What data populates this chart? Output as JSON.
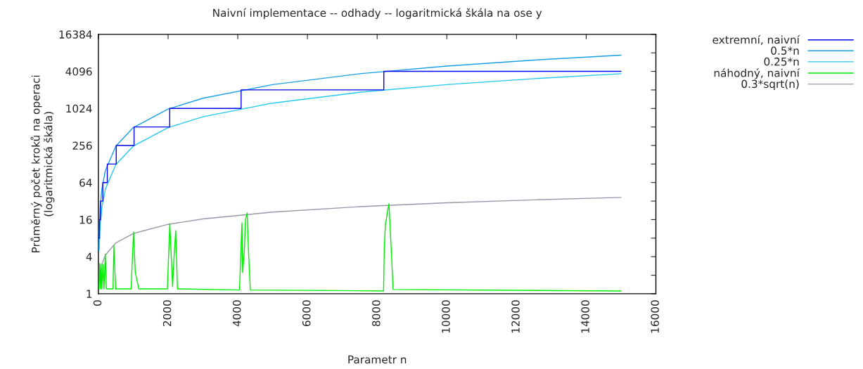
{
  "chart_data": {
    "type": "line",
    "title": "Naivní implementace -- odhady -- logaritmická škála na ose y",
    "xlabel": "Parametr n",
    "ylabel": "Průměrný počet kroků na operaci\n(logaritmická škála)",
    "series": [
      {
        "name": "extremní, naivní",
        "color": "#0000ee",
        "x": [
          16,
          32,
          32,
          64,
          64,
          128,
          128,
          256,
          256,
          512,
          512,
          1024,
          1024,
          2048,
          2048,
          4096,
          4096,
          8192,
          8192,
          15000
        ],
        "values": [
          8,
          8,
          16,
          16,
          32,
          32,
          64,
          64,
          128,
          128,
          256,
          256,
          512,
          512,
          1024,
          1024,
          2048,
          2048,
          4096,
          4096
        ]
      },
      {
        "name": "0.5*n",
        "color": "#1a9fe6",
        "x": [
          10,
          20,
          50,
          100,
          200,
          500,
          1000,
          2000,
          3000,
          5000,
          7500,
          10000,
          12500,
          15000
        ],
        "values": [
          5,
          10,
          25,
          50,
          100,
          250,
          500,
          1000,
          1500,
          2500,
          3750,
          5000,
          6250,
          7500
        ]
      },
      {
        "name": "0.25*n",
        "color": "#22c8ee",
        "x": [
          20,
          50,
          100,
          200,
          500,
          1000,
          2000,
          3000,
          5000,
          7500,
          10000,
          12500,
          15000
        ],
        "values": [
          5,
          12.5,
          25,
          50,
          125,
          250,
          500,
          750,
          1250,
          1875,
          2500,
          3125,
          3750
        ]
      },
      {
        "name": "náhodný, naivní",
        "color": "#00ee00",
        "x": [
          20,
          40,
          60,
          80,
          100,
          130,
          160,
          200,
          230,
          260,
          420,
          445,
          470,
          500,
          940,
          1010,
          1060,
          1160,
          1980,
          2050,
          2130,
          2170,
          2220,
          2270,
          4050,
          4120,
          4140,
          4190,
          4220,
          4270,
          4300,
          4360,
          8185,
          8205,
          8240,
          8270,
          8300,
          8340,
          8390,
          8460,
          15000
        ],
        "values": [
          1.2,
          3.1,
          1.2,
          3.0,
          1.2,
          3.0,
          1.2,
          4.4,
          1.2,
          1.2,
          1.2,
          6.0,
          2.6,
          1.2,
          1.2,
          10.1,
          2.2,
          1.2,
          1.2,
          13.8,
          1.3,
          3.8,
          10.6,
          1.2,
          1.15,
          14.2,
          2.2,
          5.0,
          15.7,
          20.6,
          6.3,
          1.15,
          1.11,
          5.5,
          13.9,
          17,
          22,
          29,
          7.8,
          1.17,
          1.11
        ]
      },
      {
        "name": "0.3*sqrt(n)",
        "color": "#9898aa",
        "x": [
          100,
          200,
          500,
          1000,
          2000,
          3000,
          5000,
          7500,
          10000,
          12500,
          15000
        ],
        "values": [
          3,
          4.24,
          6.7,
          9.5,
          13.4,
          16.4,
          21.2,
          26,
          30,
          33.5,
          36.7
        ]
      }
    ],
    "log": "y",
    "xlim": [
      0,
      16000
    ],
    "xticks": [
      0,
      2000,
      4000,
      6000,
      8000,
      10000,
      12000,
      14000,
      16000
    ],
    "ylim": [
      1,
      16384
    ],
    "yticks": [
      1,
      {
        "value": 2,
        "label": null
      },
      4,
      {
        "value": 8,
        "label": null
      },
      16,
      {
        "value": 32,
        "label": null
      },
      64,
      {
        "value": 128,
        "label": null
      },
      256,
      {
        "value": 512,
        "label": null
      },
      1024,
      {
        "value": 2048,
        "label": null
      },
      4096,
      {
        "value": 8192,
        "label": null
      },
      16384
    ],
    "grid": false,
    "legend": "top right",
    "line_style": "solid",
    "marker": "none"
  }
}
